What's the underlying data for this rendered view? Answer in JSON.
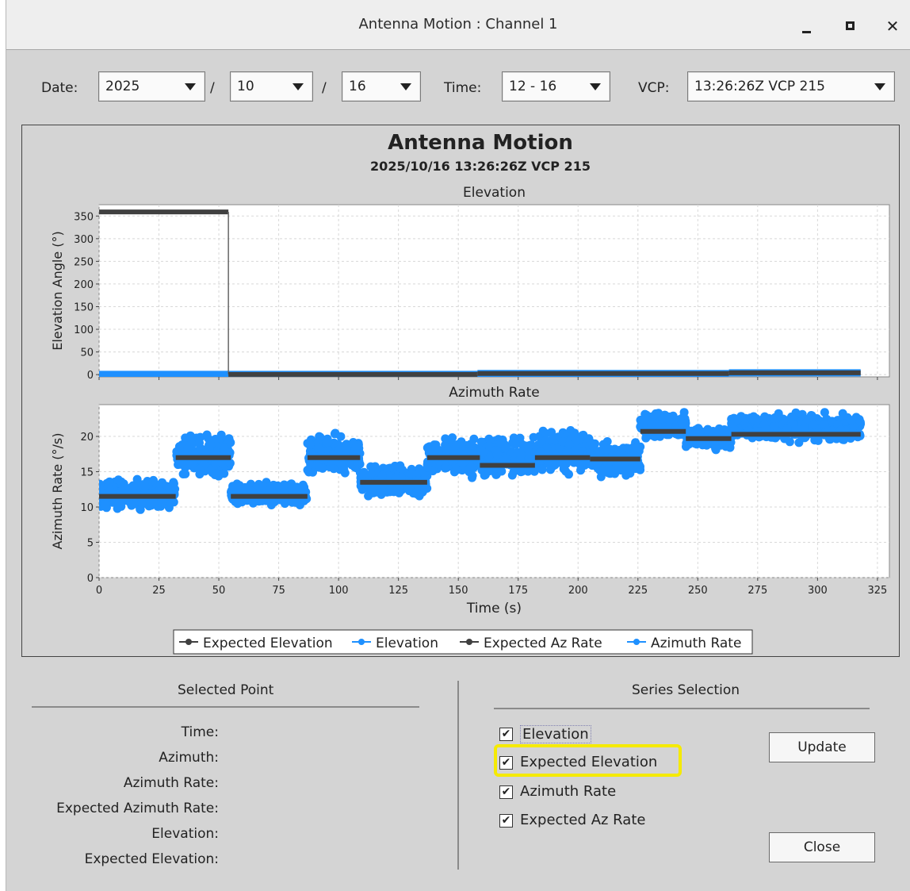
{
  "window": {
    "title": "Antenna Motion : Channel 1"
  },
  "toolbar": {
    "date_label": "Date:",
    "year": "2025",
    "sep1": "/",
    "month": "10",
    "sep2": "/",
    "day": "16",
    "time_label": "Time:",
    "time": "12 - 16",
    "vcp_label": "VCP:",
    "vcp": "13:26:26Z VCP 215"
  },
  "chart": {
    "title": "Antenna Motion",
    "subtitle": "2025/10/16 13:26:26Z VCP 215",
    "legend": [
      "Expected Elevation",
      "Elevation",
      "Expected Az Rate",
      "Azimuth Rate"
    ]
  },
  "chart_data": [
    {
      "type": "line",
      "title": "Elevation",
      "xlabel": "Time (s)",
      "ylabel": "Elevation Angle (°)",
      "xlim": [
        0,
        330
      ],
      "ylim": [
        -5,
        375
      ],
      "xticks": [
        0,
        25,
        50,
        75,
        100,
        125,
        150,
        175,
        200,
        225,
        250,
        275,
        300,
        325
      ],
      "yticks": [
        0,
        50,
        100,
        150,
        200,
        250,
        300,
        350
      ],
      "grid": true,
      "series": [
        {
          "name": "Expected Elevation",
          "color": "#404040",
          "points": [
            [
              0,
              359
            ],
            [
              54,
              359
            ],
            [
              54,
              0.5
            ],
            [
              158,
              0.5
            ],
            [
              158,
              2.4
            ],
            [
              263,
              2.4
            ],
            [
              263,
              4.0
            ],
            [
              318,
              4.0
            ]
          ]
        },
        {
          "name": "Elevation",
          "color": "#1e90ff",
          "segments": [
            {
              "x": [
                0,
                54
              ],
              "y": 0.5
            },
            {
              "x": [
                54,
                158
              ],
              "y": 0.5
            },
            {
              "x": [
                158,
                263
              ],
              "y": 2.4
            },
            {
              "x": [
                263,
                318
              ],
              "y": 4.0
            }
          ]
        }
      ]
    },
    {
      "type": "scatter",
      "title": "Azimuth Rate",
      "xlabel": "Time (s)",
      "ylabel": "Azimuth Rate (°/s)",
      "xlim": [
        0,
        330
      ],
      "ylim": [
        0,
        24.5
      ],
      "xticks": [
        0,
        25,
        50,
        75,
        100,
        125,
        150,
        175,
        200,
        225,
        250,
        275,
        300,
        325
      ],
      "yticks": [
        0,
        5,
        10,
        15,
        20
      ],
      "grid": true,
      "series": [
        {
          "name": "Expected Az Rate",
          "color": "#404040",
          "segments": [
            {
              "x": [
                0,
                32
              ],
              "y": 11.5
            },
            {
              "x": [
                32,
                55
              ],
              "y": 17.0
            },
            {
              "x": [
                55,
                87
              ],
              "y": 11.5
            },
            {
              "x": [
                87,
                109
              ],
              "y": 17.0
            },
            {
              "x": [
                109,
                137
              ],
              "y": 13.5
            },
            {
              "x": [
                137,
                159
              ],
              "y": 17.0
            },
            {
              "x": [
                159,
                182
              ],
              "y": 15.9
            },
            {
              "x": [
                182,
                205
              ],
              "y": 17.0
            },
            {
              "x": [
                205,
                226
              ],
              "y": 16.8
            },
            {
              "x": [
                226,
                245
              ],
              "y": 20.7
            },
            {
              "x": [
                245,
                264
              ],
              "y": 19.7
            },
            {
              "x": [
                264,
                318
              ],
              "y": 20.3
            }
          ]
        },
        {
          "name": "Azimuth Rate",
          "color": "#1e90ff",
          "bands": [
            {
              "x": [
                0,
                32
              ],
              "min": 9.5,
              "max": 14.2
            },
            {
              "x": [
                32,
                55
              ],
              "min": 14.0,
              "max": 20.7
            },
            {
              "x": [
                55,
                87
              ],
              "min": 9.9,
              "max": 13.6
            },
            {
              "x": [
                87,
                109
              ],
              "min": 14.0,
              "max": 20.6
            },
            {
              "x": [
                109,
                137
              ],
              "min": 11.0,
              "max": 16.3
            },
            {
              "x": [
                137,
                159
              ],
              "min": 14.0,
              "max": 20.2
            },
            {
              "x": [
                159,
                182
              ],
              "min": 13.9,
              "max": 20.2
            },
            {
              "x": [
                182,
                205
              ],
              "min": 14.5,
              "max": 21.6
            },
            {
              "x": [
                205,
                226
              ],
              "min": 13.9,
              "max": 19.4
            },
            {
              "x": [
                226,
                245
              ],
              "min": 19.5,
              "max": 23.7
            },
            {
              "x": [
                245,
                264
              ],
              "min": 18.0,
              "max": 21.7
            },
            {
              "x": [
                264,
                318
              ],
              "min": 19.0,
              "max": 23.5
            }
          ]
        }
      ]
    }
  ],
  "selected_point": {
    "title": "Selected Point",
    "labels": [
      "Time:",
      "Azimuth:",
      "Azimuth Rate:",
      "Expected Azimuth Rate:",
      "Elevation:",
      "Expected Elevation:"
    ]
  },
  "series_selection": {
    "title": "Series Selection",
    "items": [
      {
        "label": "Elevation",
        "checked": true
      },
      {
        "label": "Expected Elevation",
        "checked": true
      },
      {
        "label": "Azimuth Rate",
        "checked": true
      },
      {
        "label": "Expected Az Rate",
        "checked": true
      }
    ],
    "check_mark": "✔",
    "update_label": "Update",
    "close_label": "Close"
  },
  "colors": {
    "expected": "#404040",
    "measured": "#1e90ff",
    "highlight": "#f5ea00"
  }
}
